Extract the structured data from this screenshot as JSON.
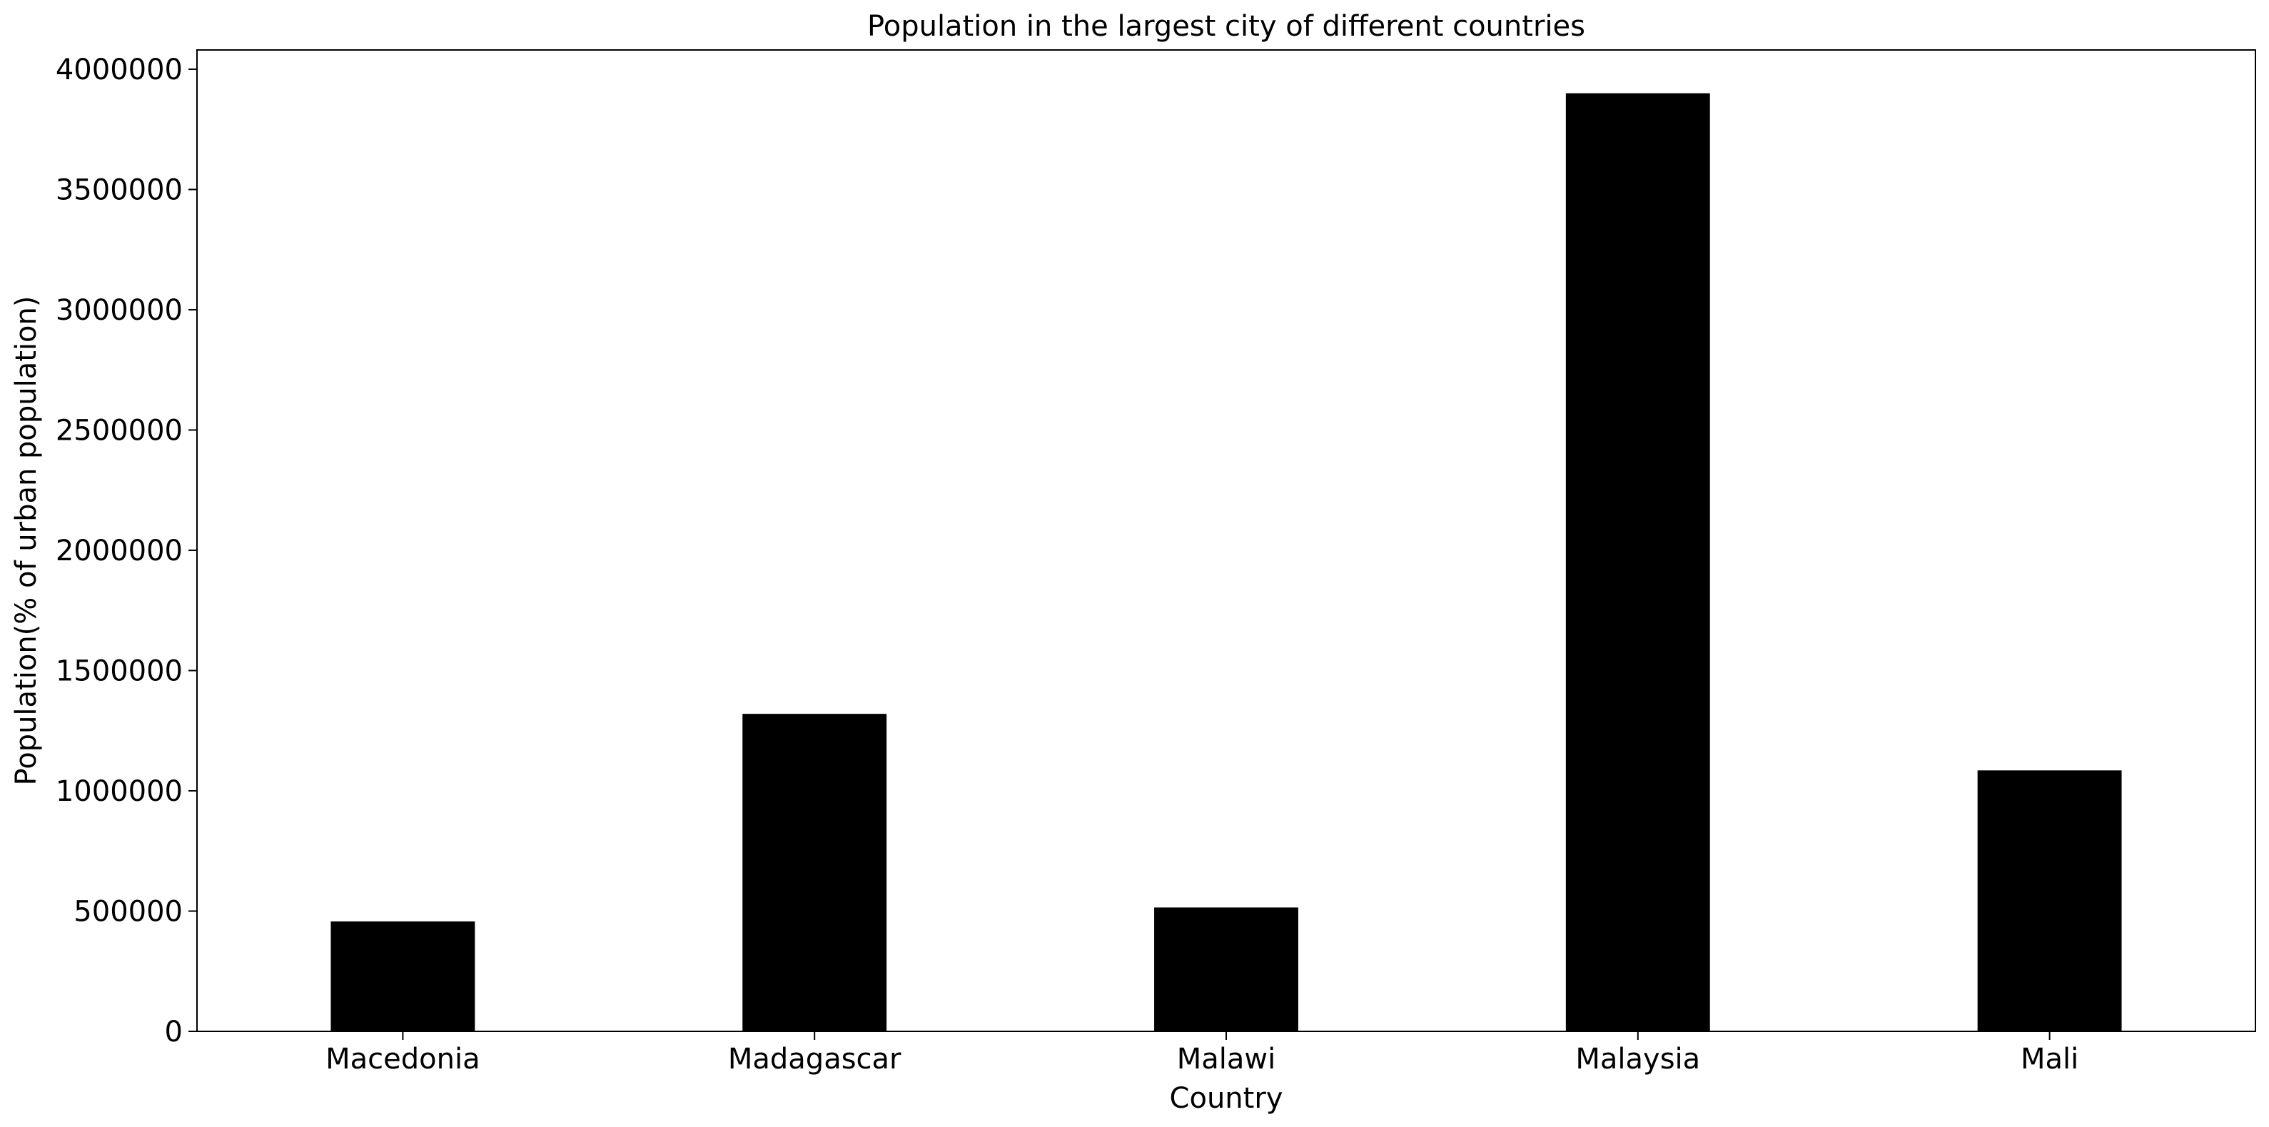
{
  "chart_data": {
    "type": "bar",
    "title": "Population in the largest city of different countries",
    "xlabel": "Country",
    "ylabel": "Population(% of urban population)",
    "categories": [
      "Macedonia",
      "Madagascar",
      "Malawi",
      "Malaysia",
      "Mali"
    ],
    "values": [
      457000,
      1320000,
      515000,
      3900000,
      1085000
    ],
    "ylim": [
      0,
      4080000
    ],
    "yticks": [
      0,
      500000,
      1000000,
      1500000,
      2000000,
      2500000,
      3000000,
      3500000,
      4000000
    ],
    "ytick_labels": [
      "0",
      "500000",
      "1000000",
      "1500000",
      "2000000",
      "2500000",
      "3000000",
      "3500000",
      "4000000"
    ],
    "grid": false,
    "legend": "none",
    "bar_color": "#000000"
  }
}
